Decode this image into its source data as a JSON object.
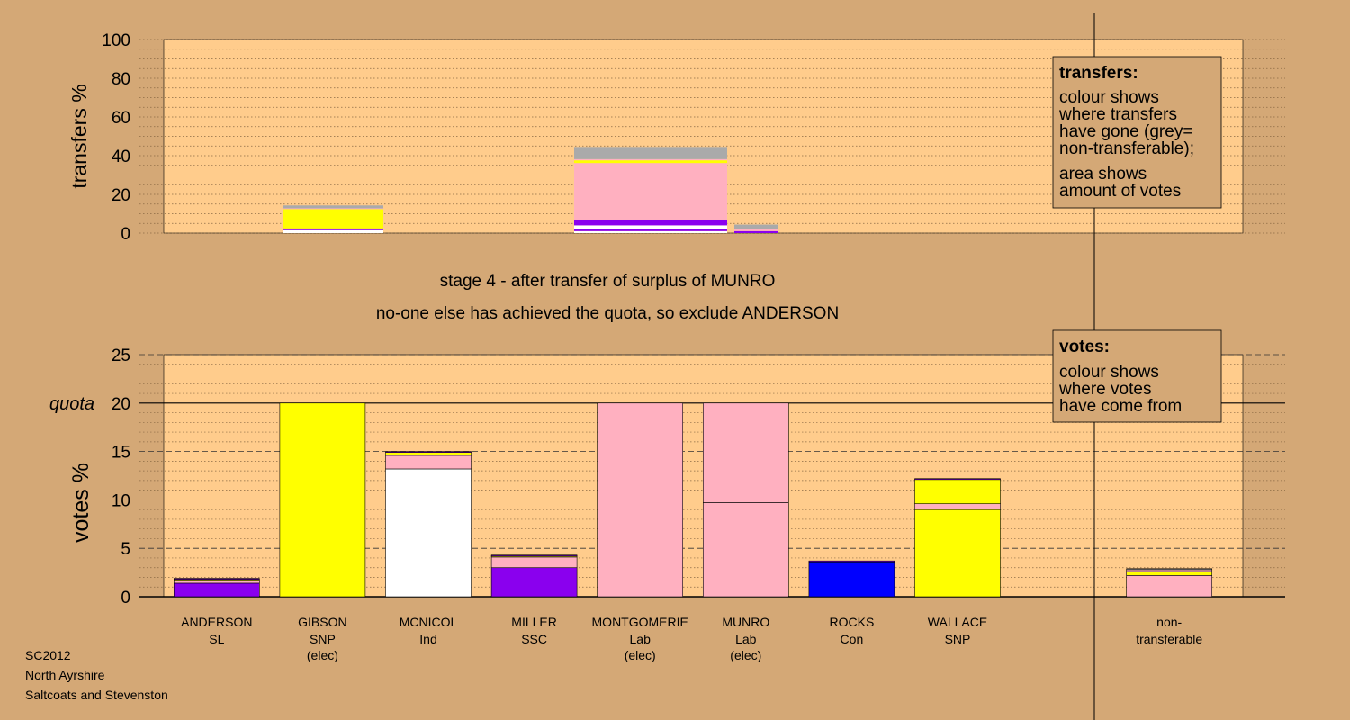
{
  "chart_data": [
    {
      "type": "bar",
      "ylabel": "transfers %",
      "ylim": [
        0,
        100
      ],
      "yticks": [
        0,
        20,
        40,
        60,
        80,
        100
      ],
      "legend": {
        "title": "transfers:",
        "lines_a": [
          "colour shows",
          "where transfers",
          "have gone (grey=",
          "non-transferable);"
        ],
        "lines_b": [
          "area shows",
          "amount of votes"
        ]
      },
      "bars": [
        {
          "slot": 1,
          "width_units": 0.95,
          "segments": [
            {
              "color": "#ffffff",
              "value": 1.5
            },
            {
              "color": "#8a00ee",
              "value": 0.9
            },
            {
              "color": "#ffff00",
              "value": 10.0
            },
            {
              "color": "#ffb0c0",
              "value": 0.4
            },
            {
              "color": "#aaaaaa",
              "value": 1.5
            }
          ]
        },
        {
          "slot": 4,
          "width_units": 1.45,
          "segments": [
            {
              "color": "#ffffff",
              "value": 1.0
            },
            {
              "color": "#8a00ee",
              "value": 1.2
            },
            {
              "color": "#ffffff",
              "value": 1.8
            },
            {
              "color": "#8a00ee",
              "value": 2.7
            },
            {
              "color": "#ffb0c0",
              "value": 29.5
            },
            {
              "color": "#ffff00",
              "value": 1.4
            },
            {
              "color": "#ffb0c0",
              "value": 0.6
            },
            {
              "color": "#aaaaaa",
              "value": 6.3
            }
          ]
        },
        {
          "slot": 5.25,
          "width_units": 0.4,
          "segments": [
            {
              "color": "#8a00ee",
              "value": 1.0
            },
            {
              "color": "#ffb0c0",
              "value": 1.1
            },
            {
              "color": "#aaaaaa",
              "value": 2.3
            }
          ]
        }
      ]
    },
    {
      "type": "bar",
      "ylabel": "votes %",
      "quota_label": "quota",
      "quota": 20,
      "ylim": [
        0,
        25
      ],
      "yticks": [
        0,
        5,
        10,
        15,
        20,
        25
      ],
      "legend": {
        "title": "votes:",
        "lines": [
          "colour shows",
          "where votes",
          "have come from"
        ]
      },
      "categories": [
        {
          "name": "ANDERSON",
          "party": "SL",
          "note": ""
        },
        {
          "name": "GIBSON",
          "party": "SNP",
          "note": "(elec)"
        },
        {
          "name": "MCNICOL",
          "party": "Ind",
          "note": ""
        },
        {
          "name": "MILLER",
          "party": "SSC",
          "note": ""
        },
        {
          "name": "MONTGOMERIE",
          "party": "Lab",
          "note": "(elec)"
        },
        {
          "name": "MUNRO",
          "party": "Lab",
          "note": "(elec)"
        },
        {
          "name": "ROCKS",
          "party": "Con",
          "note": ""
        },
        {
          "name": "WALLACE",
          "party": "SNP",
          "note": ""
        },
        {
          "name": "",
          "party": "",
          "note": ""
        },
        {
          "name": "non-",
          "party": "transferable",
          "note": ""
        }
      ],
      "bars": [
        {
          "segments": [
            {
              "color": "#8a00ee",
              "value": 1.4
            },
            {
              "color": "#ffb0c0",
              "value": 0.3
            },
            {
              "color": "#ffff00",
              "value": 0.1
            },
            {
              "color": "#8a00ee",
              "value": 0.1
            }
          ]
        },
        {
          "segments": [
            {
              "color": "#ffff00",
              "value": 20.0
            }
          ]
        },
        {
          "segments": [
            {
              "color": "#ffffff",
              "value": 13.2
            },
            {
              "color": "#ffb0c0",
              "value": 1.4
            },
            {
              "color": "#ffff00",
              "value": 0.3
            },
            {
              "color": "#8a00ee",
              "value": 0.1
            }
          ]
        },
        {
          "segments": [
            {
              "color": "#8a00ee",
              "value": 3.0
            },
            {
              "color": "#ffb0c0",
              "value": 1.1
            },
            {
              "color": "#ffff00",
              "value": 0.1
            },
            {
              "color": "#8a00ee",
              "value": 0.1
            }
          ]
        },
        {
          "segments": [
            {
              "color": "#ffb0c0",
              "value": 20.0
            }
          ]
        },
        {
          "segments": [
            {
              "color": "#ffb0c0",
              "value": 20.0
            }
          ],
          "dividers": [
            9.7
          ]
        },
        {
          "segments": [
            {
              "color": "#0000ff",
              "value": 3.6
            },
            {
              "color": "#8a00ee",
              "value": 0.1
            }
          ]
        },
        {
          "segments": [
            {
              "color": "#ffff00",
              "value": 9.0
            },
            {
              "color": "#ffb0c0",
              "value": 0.6
            },
            {
              "color": "#ffff00",
              "value": 2.5
            },
            {
              "color": "#8a00ee",
              "value": 0.1
            }
          ]
        },
        {
          "segments": []
        },
        {
          "segments": [
            {
              "color": "#ffb0c0",
              "value": 2.2
            },
            {
              "color": "#ffff00",
              "value": 0.4
            },
            {
              "color": "#ffb0c0",
              "value": 0.2
            },
            {
              "color": "#aaaaaa",
              "value": 0.1
            }
          ]
        }
      ]
    }
  ],
  "stage_text": "stage 4 - after transfer of surplus of MUNRO",
  "action_text": "no-one else has achieved the quota, so exclude ANDERSON",
  "footer": [
    "SC2012",
    "North Ayrshire",
    "Saltcoats and Stevenston"
  ],
  "colors": {
    "background": "#d4a876",
    "plot_area": "#ffcc8c",
    "legend_box": "#d4a876",
    "axis": "#000000"
  }
}
